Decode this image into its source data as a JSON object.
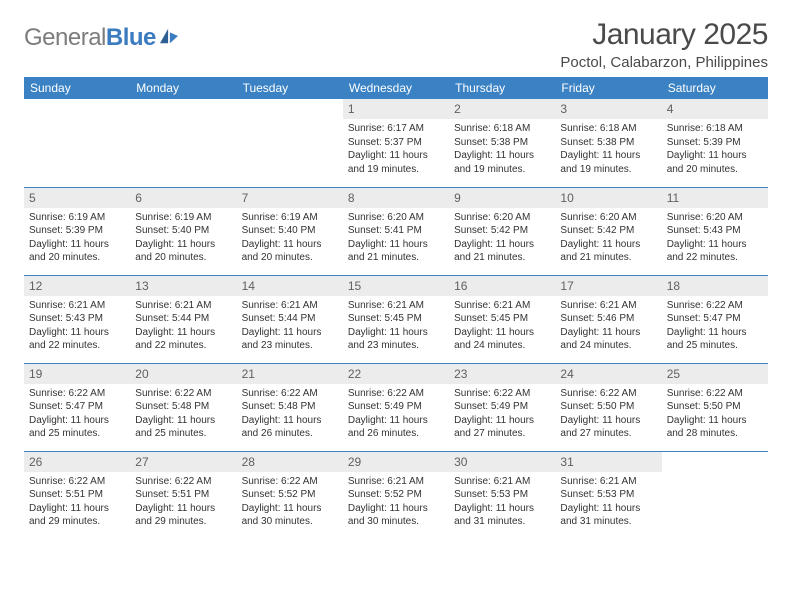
{
  "logo": {
    "text1": "General",
    "text2": "Blue"
  },
  "title": "January 2025",
  "location": "Poctol, Calabarzon, Philippines",
  "colors": {
    "header_bg": "#3b82c4",
    "header_text": "#ffffff",
    "daynum_bg": "#ececec",
    "rule": "#3b82c4",
    "logo_gray": "#7c7c7c",
    "logo_blue": "#3b7bbf"
  },
  "weekdays": [
    "Sunday",
    "Monday",
    "Tuesday",
    "Wednesday",
    "Thursday",
    "Friday",
    "Saturday"
  ],
  "weeks": [
    [
      null,
      null,
      null,
      {
        "n": "1",
        "sunrise": "Sunrise: 6:17 AM",
        "sunset": "Sunset: 5:37 PM",
        "day1": "Daylight: 11 hours",
        "day2": "and 19 minutes."
      },
      {
        "n": "2",
        "sunrise": "Sunrise: 6:18 AM",
        "sunset": "Sunset: 5:38 PM",
        "day1": "Daylight: 11 hours",
        "day2": "and 19 minutes."
      },
      {
        "n": "3",
        "sunrise": "Sunrise: 6:18 AM",
        "sunset": "Sunset: 5:38 PM",
        "day1": "Daylight: 11 hours",
        "day2": "and 19 minutes."
      },
      {
        "n": "4",
        "sunrise": "Sunrise: 6:18 AM",
        "sunset": "Sunset: 5:39 PM",
        "day1": "Daylight: 11 hours",
        "day2": "and 20 minutes."
      }
    ],
    [
      {
        "n": "5",
        "sunrise": "Sunrise: 6:19 AM",
        "sunset": "Sunset: 5:39 PM",
        "day1": "Daylight: 11 hours",
        "day2": "and 20 minutes."
      },
      {
        "n": "6",
        "sunrise": "Sunrise: 6:19 AM",
        "sunset": "Sunset: 5:40 PM",
        "day1": "Daylight: 11 hours",
        "day2": "and 20 minutes."
      },
      {
        "n": "7",
        "sunrise": "Sunrise: 6:19 AM",
        "sunset": "Sunset: 5:40 PM",
        "day1": "Daylight: 11 hours",
        "day2": "and 20 minutes."
      },
      {
        "n": "8",
        "sunrise": "Sunrise: 6:20 AM",
        "sunset": "Sunset: 5:41 PM",
        "day1": "Daylight: 11 hours",
        "day2": "and 21 minutes."
      },
      {
        "n": "9",
        "sunrise": "Sunrise: 6:20 AM",
        "sunset": "Sunset: 5:42 PM",
        "day1": "Daylight: 11 hours",
        "day2": "and 21 minutes."
      },
      {
        "n": "10",
        "sunrise": "Sunrise: 6:20 AM",
        "sunset": "Sunset: 5:42 PM",
        "day1": "Daylight: 11 hours",
        "day2": "and 21 minutes."
      },
      {
        "n": "11",
        "sunrise": "Sunrise: 6:20 AM",
        "sunset": "Sunset: 5:43 PM",
        "day1": "Daylight: 11 hours",
        "day2": "and 22 minutes."
      }
    ],
    [
      {
        "n": "12",
        "sunrise": "Sunrise: 6:21 AM",
        "sunset": "Sunset: 5:43 PM",
        "day1": "Daylight: 11 hours",
        "day2": "and 22 minutes."
      },
      {
        "n": "13",
        "sunrise": "Sunrise: 6:21 AM",
        "sunset": "Sunset: 5:44 PM",
        "day1": "Daylight: 11 hours",
        "day2": "and 22 minutes."
      },
      {
        "n": "14",
        "sunrise": "Sunrise: 6:21 AM",
        "sunset": "Sunset: 5:44 PM",
        "day1": "Daylight: 11 hours",
        "day2": "and 23 minutes."
      },
      {
        "n": "15",
        "sunrise": "Sunrise: 6:21 AM",
        "sunset": "Sunset: 5:45 PM",
        "day1": "Daylight: 11 hours",
        "day2": "and 23 minutes."
      },
      {
        "n": "16",
        "sunrise": "Sunrise: 6:21 AM",
        "sunset": "Sunset: 5:45 PM",
        "day1": "Daylight: 11 hours",
        "day2": "and 24 minutes."
      },
      {
        "n": "17",
        "sunrise": "Sunrise: 6:21 AM",
        "sunset": "Sunset: 5:46 PM",
        "day1": "Daylight: 11 hours",
        "day2": "and 24 minutes."
      },
      {
        "n": "18",
        "sunrise": "Sunrise: 6:22 AM",
        "sunset": "Sunset: 5:47 PM",
        "day1": "Daylight: 11 hours",
        "day2": "and 25 minutes."
      }
    ],
    [
      {
        "n": "19",
        "sunrise": "Sunrise: 6:22 AM",
        "sunset": "Sunset: 5:47 PM",
        "day1": "Daylight: 11 hours",
        "day2": "and 25 minutes."
      },
      {
        "n": "20",
        "sunrise": "Sunrise: 6:22 AM",
        "sunset": "Sunset: 5:48 PM",
        "day1": "Daylight: 11 hours",
        "day2": "and 25 minutes."
      },
      {
        "n": "21",
        "sunrise": "Sunrise: 6:22 AM",
        "sunset": "Sunset: 5:48 PM",
        "day1": "Daylight: 11 hours",
        "day2": "and 26 minutes."
      },
      {
        "n": "22",
        "sunrise": "Sunrise: 6:22 AM",
        "sunset": "Sunset: 5:49 PM",
        "day1": "Daylight: 11 hours",
        "day2": "and 26 minutes."
      },
      {
        "n": "23",
        "sunrise": "Sunrise: 6:22 AM",
        "sunset": "Sunset: 5:49 PM",
        "day1": "Daylight: 11 hours",
        "day2": "and 27 minutes."
      },
      {
        "n": "24",
        "sunrise": "Sunrise: 6:22 AM",
        "sunset": "Sunset: 5:50 PM",
        "day1": "Daylight: 11 hours",
        "day2": "and 27 minutes."
      },
      {
        "n": "25",
        "sunrise": "Sunrise: 6:22 AM",
        "sunset": "Sunset: 5:50 PM",
        "day1": "Daylight: 11 hours",
        "day2": "and 28 minutes."
      }
    ],
    [
      {
        "n": "26",
        "sunrise": "Sunrise: 6:22 AM",
        "sunset": "Sunset: 5:51 PM",
        "day1": "Daylight: 11 hours",
        "day2": "and 29 minutes."
      },
      {
        "n": "27",
        "sunrise": "Sunrise: 6:22 AM",
        "sunset": "Sunset: 5:51 PM",
        "day1": "Daylight: 11 hours",
        "day2": "and 29 minutes."
      },
      {
        "n": "28",
        "sunrise": "Sunrise: 6:22 AM",
        "sunset": "Sunset: 5:52 PM",
        "day1": "Daylight: 11 hours",
        "day2": "and 30 minutes."
      },
      {
        "n": "29",
        "sunrise": "Sunrise: 6:21 AM",
        "sunset": "Sunset: 5:52 PM",
        "day1": "Daylight: 11 hours",
        "day2": "and 30 minutes."
      },
      {
        "n": "30",
        "sunrise": "Sunrise: 6:21 AM",
        "sunset": "Sunset: 5:53 PM",
        "day1": "Daylight: 11 hours",
        "day2": "and 31 minutes."
      },
      {
        "n": "31",
        "sunrise": "Sunrise: 6:21 AM",
        "sunset": "Sunset: 5:53 PM",
        "day1": "Daylight: 11 hours",
        "day2": "and 31 minutes."
      },
      null
    ]
  ]
}
